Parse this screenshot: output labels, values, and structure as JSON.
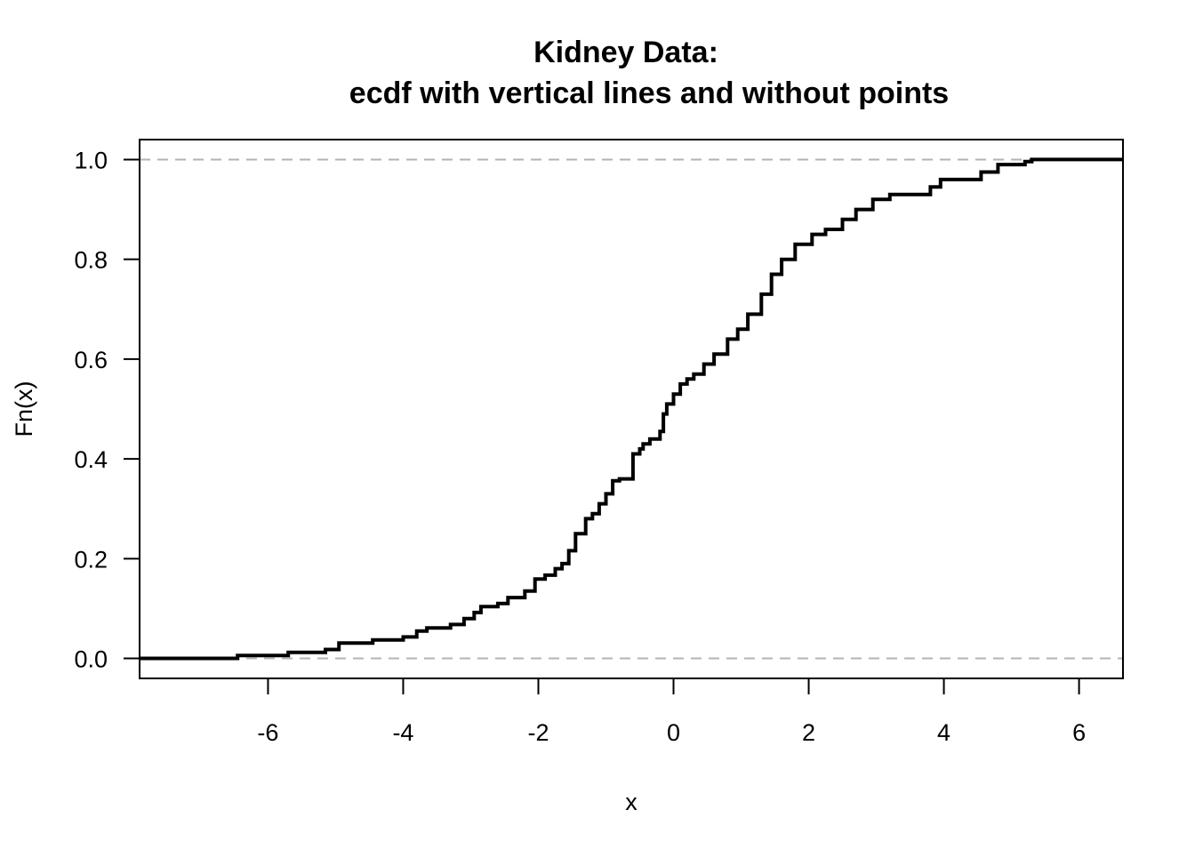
{
  "chart_data": {
    "type": "line",
    "step": true,
    "title": "Kidney Data:",
    "subtitle": "ecdf with vertical lines and without points",
    "xlabel": "x",
    "ylabel": "Fn(x)",
    "xlim": [
      -7.9,
      6.65
    ],
    "ylim": [
      -0.04,
      1.04
    ],
    "x_ticks": [
      -6,
      -4,
      -2,
      0,
      2,
      4,
      6
    ],
    "x_tick_labels": [
      "-6",
      "-4",
      "-2",
      "0",
      "2",
      "4",
      "6"
    ],
    "y_ticks": [
      0.0,
      0.2,
      0.4,
      0.6,
      0.8,
      1.0
    ],
    "y_tick_labels": [
      "0.0",
      "0.2",
      "0.4",
      "0.6",
      "0.8",
      "1.0"
    ],
    "reference_lines": [
      0,
      1
    ],
    "grid": false,
    "legend": "none",
    "colors": {
      "line": "#000000",
      "reference": "#b3b3b3",
      "frame": "#000000"
    },
    "series": [
      {
        "x": [
          -6.45,
          -5.7,
          -5.15,
          -4.95,
          -4.45,
          -4.0,
          -3.8,
          -3.65,
          -3.3,
          -3.1,
          -2.95,
          -2.85,
          -2.6,
          -2.45,
          -2.2,
          -2.05,
          -1.9,
          -1.75,
          -1.65,
          -1.55,
          -1.45,
          -1.3,
          -1.2,
          -1.1,
          -1.0,
          -0.9,
          -0.8,
          -0.6,
          -0.5,
          -0.45,
          -0.35,
          -0.2,
          -0.15,
          -0.1,
          0.0,
          0.1,
          0.2,
          0.3,
          0.45,
          0.6,
          0.8,
          0.95,
          1.1,
          1.3,
          1.45,
          1.6,
          1.8,
          2.05,
          2.25,
          2.5,
          2.7,
          2.95,
          3.2,
          3.8,
          3.95,
          4.55,
          4.8,
          5.2,
          5.3
        ],
        "y": [
          0.006,
          0.012,
          0.018,
          0.031,
          0.037,
          0.043,
          0.055,
          0.061,
          0.068,
          0.08,
          0.092,
          0.104,
          0.11,
          0.122,
          0.135,
          0.159,
          0.167,
          0.18,
          0.19,
          0.216,
          0.25,
          0.28,
          0.29,
          0.31,
          0.33,
          0.356,
          0.36,
          0.41,
          0.42,
          0.43,
          0.44,
          0.455,
          0.49,
          0.51,
          0.53,
          0.55,
          0.56,
          0.57,
          0.59,
          0.61,
          0.64,
          0.66,
          0.69,
          0.73,
          0.77,
          0.8,
          0.83,
          0.85,
          0.86,
          0.88,
          0.9,
          0.92,
          0.93,
          0.945,
          0.96,
          0.975,
          0.99,
          0.996,
          1.0
        ]
      }
    ]
  }
}
